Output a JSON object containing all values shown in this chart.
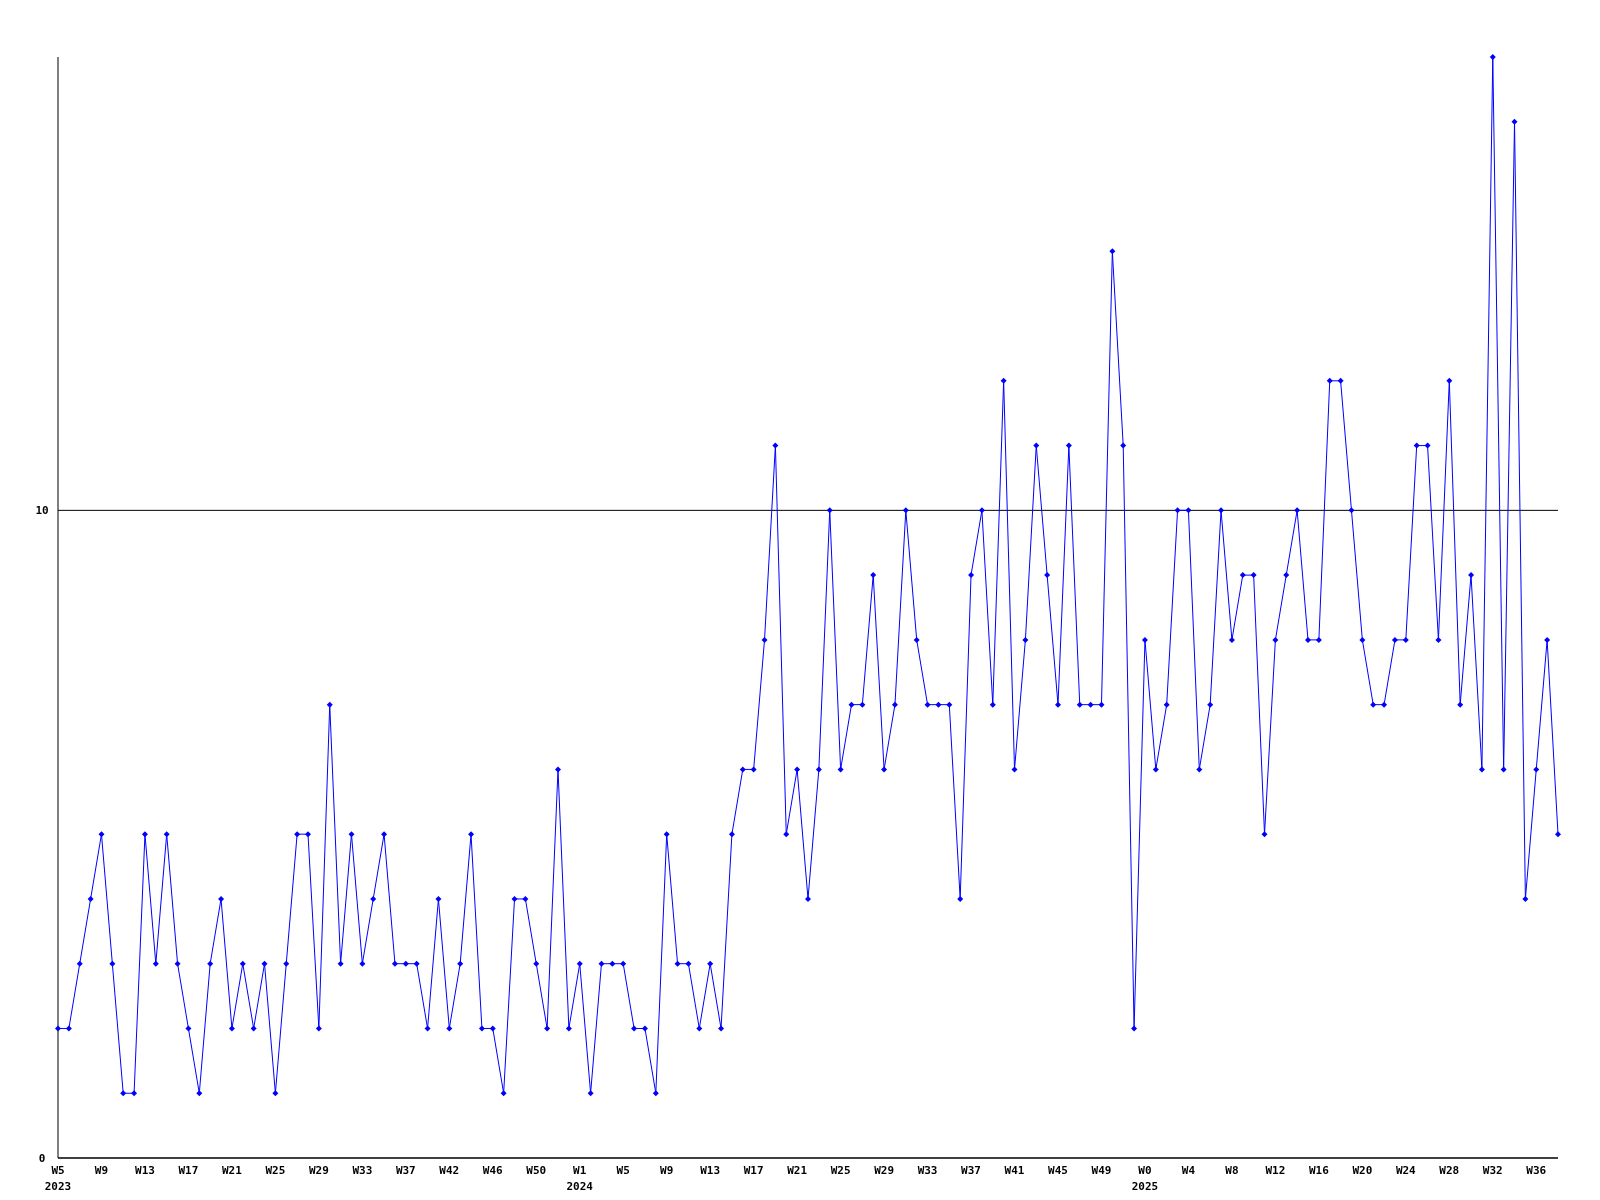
{
  "chart_data": {
    "type": "line",
    "categories": [
      "W5\n2023",
      null,
      null,
      null,
      "W9",
      null,
      null,
      null,
      "W13",
      null,
      null,
      null,
      "W17",
      null,
      null,
      null,
      "W21",
      null,
      null,
      null,
      "W25",
      null,
      null,
      null,
      "W29",
      null,
      null,
      null,
      "W33",
      null,
      null,
      null,
      "W37",
      null,
      null,
      null,
      "W42",
      null,
      null,
      null,
      "W46",
      null,
      null,
      null,
      "W50",
      null,
      null,
      null,
      "W1\n2024",
      null,
      null,
      null,
      "W5",
      null,
      null,
      null,
      "W9",
      null,
      null,
      null,
      "W13",
      null,
      null,
      null,
      "W17",
      null,
      null,
      null,
      "W21",
      null,
      null,
      null,
      "W25",
      null,
      null,
      null,
      "W29",
      null,
      null,
      null,
      "W33",
      null,
      null,
      null,
      "W37",
      null,
      null,
      null,
      "W41",
      null,
      null,
      null,
      "W45",
      null,
      null,
      null,
      "W49",
      null,
      null,
      null,
      "W0\n2025",
      null,
      null,
      null,
      "W4",
      null,
      null,
      null,
      "W8",
      null,
      null,
      null,
      "W12",
      null,
      null,
      null,
      "W16",
      null,
      null,
      null,
      "W20",
      null,
      null,
      null,
      "W24",
      null,
      null,
      null,
      "W28",
      null,
      null,
      null,
      "W32",
      null,
      null,
      null,
      "W36",
      null,
      null
    ],
    "series": [
      {
        "color": "#0000ff",
        "values": [
          2,
          2,
          3,
          4,
          5,
          3,
          1,
          1,
          5,
          3,
          5,
          3,
          2,
          1,
          3,
          4,
          2,
          3,
          2,
          3,
          1,
          3,
          5,
          5,
          2,
          7,
          3,
          5,
          3,
          4,
          5,
          3,
          3,
          3,
          2,
          4,
          2,
          3,
          5,
          2,
          2,
          1,
          4,
          4,
          3,
          2,
          6,
          2,
          3,
          1,
          3,
          3,
          3,
          2,
          2,
          1,
          5,
          3,
          3,
          2,
          3,
          2,
          5,
          6,
          6,
          8,
          11,
          5,
          6,
          4,
          6,
          10,
          6,
          7,
          7,
          9,
          6,
          7,
          10,
          8,
          7,
          7,
          7,
          4,
          9,
          10,
          7,
          12,
          6,
          8,
          11,
          9,
          7,
          11,
          7,
          7,
          7,
          14,
          11,
          2,
          8,
          6,
          7,
          10,
          10,
          6,
          7,
          10,
          8,
          9,
          9,
          5,
          8,
          9,
          10,
          8,
          8,
          12,
          12,
          10,
          8,
          7,
          7,
          8,
          8,
          11,
          11,
          8,
          12,
          7,
          9,
          6,
          17,
          6,
          16,
          4,
          6,
          8,
          5
        ]
      }
    ],
    "ylim": [
      0,
      17
    ],
    "yticks": [
      0,
      10
    ],
    "grid": "y",
    "marker": "diamond",
    "line_style": "solid"
  }
}
